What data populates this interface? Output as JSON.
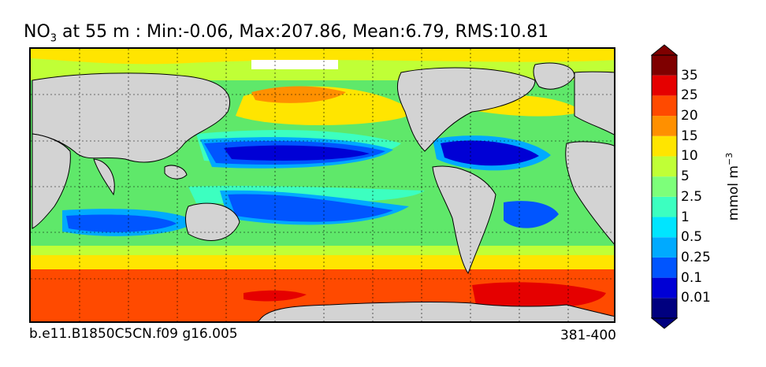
{
  "title": {
    "species": "NO",
    "species_sub": "3",
    "rest": " at 55 m : Min:-0.06, Max:207.86, Mean:6.79, RMS:10.81"
  },
  "footer": {
    "case_id": "b.e11.B1850C5CN.f09 g16.005",
    "years": "381-400"
  },
  "colorbar": {
    "units_base": "mmol m",
    "units_exp": "−3",
    "ticks": [
      "0.01",
      "0.1",
      "0.25",
      "0.5",
      "1",
      "2.5",
      "5",
      "10",
      "15",
      "20",
      "25",
      "35"
    ],
    "colors": [
      "#00007f",
      "#0000d5",
      "#0055ff",
      "#00aaff",
      "#00e5ff",
      "#3cffc0",
      "#7dff7a",
      "#c0ff36",
      "#ffe500",
      "#ff9000",
      "#ff4a00",
      "#e50000",
      "#7f0000"
    ],
    "extend": "both"
  },
  "map": {
    "land_color": "#d3d3d3",
    "missing_color": "#ffffff",
    "grid": true,
    "grid_style": "dashed"
  }
}
